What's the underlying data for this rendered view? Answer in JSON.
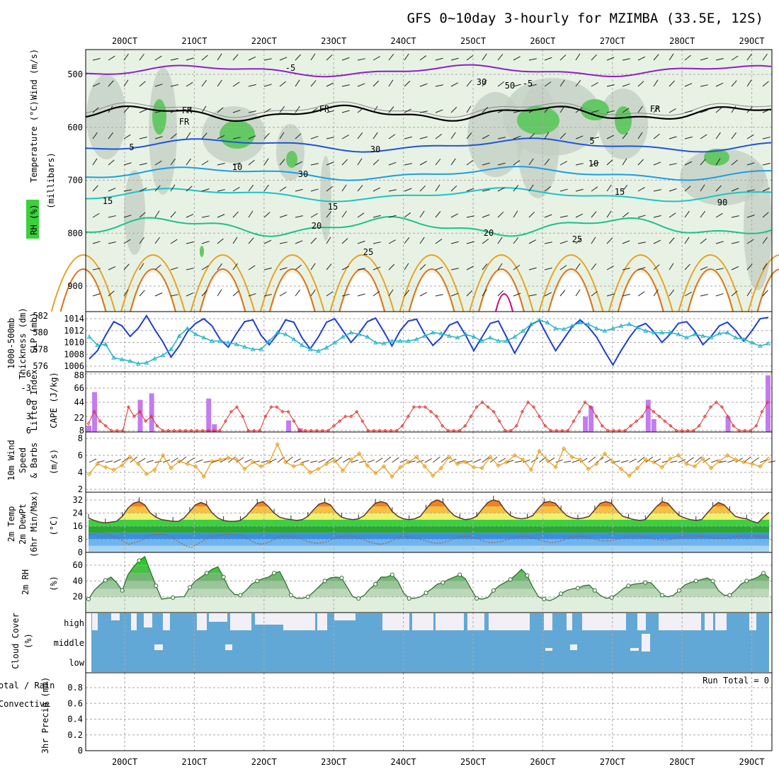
{
  "chart_data": {
    "title": "GFS 0~10day 3-hourly for MZIMBA (33.5E, 12S)",
    "x_ticks": [
      "20OCT",
      "21OCT",
      "22OCT",
      "23OCT",
      "24OCT",
      "25OCT",
      "26OCT",
      "27OCT",
      "28OCT",
      "29OCT"
    ],
    "panels": [
      {
        "name": "upper-air",
        "type": "heatmap",
        "ylabels": [
          "Wind (m/s)",
          "Temperature (°C)",
          "RH (%)",
          "(millibars)"
        ],
        "y_ticks": [
          "500",
          "600",
          "700",
          "800",
          "900"
        ],
        "contour_labels": [
          "-5",
          "-5",
          "FR",
          "FR",
          "FR",
          "FR",
          "5",
          "5",
          "10",
          "10",
          "15",
          "15",
          "15",
          "20",
          "20",
          "25",
          "25",
          "30",
          "30",
          "30",
          "50",
          "90"
        ]
      },
      {
        "name": "slp-thickness",
        "type": "line",
        "ylabels": [
          "SLP (mb)",
          "1000-500mb",
          "Thickness (dm)"
        ],
        "y_ticks_left": [
          "576",
          "578",
          "580",
          "582"
        ],
        "y_ticks_right": [
          "1006",
          "1008",
          "1010",
          "1012",
          "1014"
        ],
        "series": [
          {
            "name": "SLP",
            "color": "#1f3fd1",
            "values": [
              1007.2,
              1008.6,
              1011.2,
              1013.5,
              1012.8,
              1011.0,
              1012.4,
              1014.5,
              1012.2,
              1010.1,
              1007.5,
              1009.4,
              1011.8,
              1013.2,
              1014.0,
              1012.8,
              1010.5,
              1009.2,
              1011.5,
              1013.5,
              1013.8,
              1011.2,
              1009.6,
              1011.4,
              1013.8,
              1013.4,
              1010.8,
              1008.9,
              1010.9,
              1013.4,
              1014.0,
              1012.0,
              1010.0,
              1011.6,
              1013.5,
              1014.1,
              1011.8,
              1009.4,
              1012.0,
              1013.6,
              1013.9,
              1011.4,
              1009.5,
              1010.8,
              1012.9,
              1013.5,
              1011.2,
              1008.6,
              1010.9,
              1013.2,
              1013.6,
              1010.9,
              1008.2,
              1010.6,
              1013.0,
              1013.7,
              1011.1,
              1008.6,
              1010.6,
              1012.6,
              1013.8,
              1012.6,
              1010.9,
              1008.5,
              1006.2,
              1008.6,
              1010.8,
              1012.6,
              1013.2,
              1011.8,
              1010.0,
              1011.4,
              1013.2,
              1013.5,
              1011.9,
              1009.6,
              1011.0,
              1012.8,
              1013.4,
              1012.0,
              1010.2,
              1012.0,
              1014.0,
              1014.2
            ]
          },
          {
            "name": "Thickness",
            "color": "#23b3c9",
            "values": [
              579.5,
              578.5,
              578.6,
              577.0,
              576.8,
              576.6,
              576.3,
              576.4,
              576.9,
              577.3,
              578.0,
              579.6,
              580.5,
              579.8,
              579.4,
              579.0,
              579.0,
              578.8,
              578.6,
              578.3,
              578.0,
              578.0,
              579.0,
              580.0,
              579.8,
              579.2,
              578.5,
              578.0,
              577.8,
              578.2,
              578.8,
              579.5,
              580.0,
              579.8,
              579.5,
              578.8,
              578.7,
              579.0,
              579.0,
              579.0,
              579.2,
              579.6,
              580.0,
              579.9,
              579.6,
              579.4,
              579.8,
              579.5,
              579.0,
              579.4,
              579.0,
              579.0,
              579.5,
              580.2,
              581.0,
              581.5,
              581.2,
              580.5,
              580.4,
              580.8,
              581.2,
              581.0,
              580.5,
              580.2,
              580.5,
              580.8,
              581.0,
              580.6,
              580.2,
              580.0,
              580.0,
              580.0,
              579.8,
              579.4,
              579.8,
              579.6,
              579.4,
              579.9,
              580.0,
              579.4,
              579.2,
              578.8,
              578.4,
              578.7
            ]
          }
        ]
      },
      {
        "name": "lifted-cape",
        "type": "bar",
        "ylabels": [
          "Lifted Index",
          "CAPE (J/kg)"
        ],
        "y_ticks_left": [
          "6",
          "3",
          "0",
          "-3",
          "-6"
        ],
        "y_ticks_right": [
          "8",
          "22",
          "44",
          "66",
          "88"
        ],
        "cape_bars": [
          [
            0,
            10
          ],
          [
            1,
            62
          ],
          [
            9,
            50
          ],
          [
            11,
            60
          ],
          [
            21,
            52
          ],
          [
            22,
            12
          ],
          [
            35,
            18
          ],
          [
            37,
            6
          ],
          [
            87,
            24
          ],
          [
            88,
            40
          ],
          [
            98,
            50
          ],
          [
            99,
            20
          ],
          [
            112,
            24
          ],
          [
            119,
            88
          ]
        ],
        "lifted_index": [
          4.5,
          2,
          4,
          5,
          6,
          6,
          6,
          1,
          3,
          2,
          4,
          3,
          5,
          6,
          6,
          6,
          6,
          6,
          6,
          6,
          6,
          6,
          6,
          6,
          4,
          2,
          1,
          3,
          6,
          6,
          6,
          3,
          1,
          1,
          2,
          2,
          4,
          6,
          6,
          6,
          6,
          6,
          6,
          5,
          4,
          3,
          3,
          2,
          4,
          6,
          6,
          6,
          6,
          6,
          6,
          5,
          3,
          1,
          1,
          1,
          2,
          3,
          5,
          6,
          6,
          6,
          5,
          3,
          1,
          0,
          1,
          2,
          4,
          6,
          6,
          5,
          2,
          0,
          1,
          3,
          5,
          6,
          6,
          6,
          6,
          4,
          2,
          0,
          1,
          3,
          5,
          6,
          6,
          6,
          6,
          5,
          4,
          3,
          1,
          2,
          3,
          4,
          5,
          6,
          6,
          6,
          6,
          5,
          3,
          1,
          0,
          1,
          3,
          5,
          6,
          6,
          6,
          5,
          2,
          0
        ]
      },
      {
        "name": "wind10m",
        "type": "line",
        "ylabels": [
          "10m Wind",
          "Speed",
          "& Barbs"
        ],
        "unit": "(m/s)",
        "y_ticks": [
          "2",
          "4",
          "6",
          "8"
        ],
        "speed": [
          3.8,
          5.0,
          4.6,
          4.3,
          4.8,
          5.8,
          5.0,
          3.8,
          4.3,
          6.0,
          4.5,
          5.3,
          5.0,
          4.7,
          3.5,
          5.3,
          5.5,
          5.7,
          5.5,
          4.4,
          5.2,
          4.7,
          5.2,
          7.3,
          5.2,
          4.7,
          5.0,
          4.0,
          4.4,
          5.0,
          5.4,
          4.2,
          5.5,
          6.2,
          4.8,
          3.9,
          4.7,
          3.5,
          4.6,
          5.2,
          5.8,
          4.7,
          3.6,
          4.5,
          5.8,
          5.0,
          5.2,
          4.6,
          4.5,
          5.8,
          4.8,
          5.2,
          6.0,
          5.5,
          4.3,
          6.5,
          5.4,
          4.6,
          6.8,
          5.8,
          5.5,
          4.4,
          5.0,
          6.2,
          5.2,
          4.4,
          3.6,
          4.5,
          5.5,
          5.2,
          4.6,
          5.6,
          6.0,
          5.0,
          4.7,
          5.6,
          4.5,
          5.3,
          6.0,
          5.5,
          5.2,
          5.0,
          4.7,
          5.6
        ]
      },
      {
        "name": "temp2m",
        "type": "area",
        "ylabels": [
          "2m Temp",
          "2m DewPt",
          "(6hr Min/Max)"
        ],
        "unit": "(°C)",
        "y_ticks": [
          "0",
          "8",
          "16",
          "24",
          "32"
        ],
        "temp": [
          21,
          19.5,
          18.5,
          18,
          18.5,
          19,
          22,
          27,
          30,
          31,
          29,
          24,
          21.5,
          20,
          19.5,
          19,
          19,
          21,
          25,
          29,
          30.5,
          29,
          24,
          21,
          19.5,
          19,
          19,
          19.5,
          22,
          26,
          30,
          31,
          28,
          24,
          21.5,
          20.5,
          20,
          19.5,
          20,
          22,
          26,
          29.5,
          30.5,
          29,
          24.5,
          21.5,
          20.5,
          20,
          20.5,
          22.5,
          26.5,
          30,
          31,
          30,
          25,
          22,
          20.5,
          20,
          20.5,
          22,
          26.5,
          30.5,
          32,
          30.5,
          26,
          22.5,
          21,
          20,
          20.5,
          22,
          26.5,
          30.5,
          32,
          31,
          26,
          22.5,
          21,
          20.5,
          21,
          22.5,
          27,
          30.5,
          31,
          30,
          26,
          22.5,
          21,
          20.5,
          21,
          22,
          26,
          30,
          31,
          30,
          25.5,
          22,
          21,
          20,
          19.5,
          20,
          24,
          28,
          31,
          30,
          26,
          22.5,
          21,
          20,
          19.5,
          20,
          24,
          28,
          30.5,
          29,
          25.5,
          22,
          21,
          20.5,
          19,
          18,
          21.5,
          24.5
        ],
        "dewpt": [
          11,
          11.5,
          12,
          11.5,
          10,
          9,
          7,
          5,
          6,
          7,
          9,
          10.5,
          11,
          11,
          10,
          8,
          6,
          4,
          3,
          5,
          7,
          9,
          10,
          10.5,
          11,
          11,
          10.5,
          10,
          8,
          6,
          5,
          5.5,
          7,
          9,
          10,
          10,
          9.5,
          8.5,
          7,
          6,
          5.5,
          6,
          7,
          8.5,
          9.5,
          10,
          10,
          9,
          8,
          6.5,
          5.5,
          5,
          5.5,
          7,
          9,
          10,
          9.5,
          9,
          8,
          7,
          6,
          5.5,
          6,
          7,
          8.5,
          9.5,
          9.8,
          9.5,
          8.5,
          7,
          6,
          6,
          6.5,
          7.5,
          8.5,
          9.5,
          9.8,
          9.5,
          8.5,
          7.5,
          6.5,
          6,
          6.5,
          7.5,
          9,
          9.8,
          9.8,
          9.5,
          8.5,
          7.5,
          7,
          7,
          7.5,
          8.5,
          9.5,
          10,
          10,
          9.5,
          9,
          8,
          7.5,
          7.5,
          8,
          9,
          9.8,
          10,
          10,
          9.8,
          9.5,
          9,
          8.5,
          8.5,
          9,
          9.5,
          10,
          10,
          10,
          9.8,
          9.5,
          9.5
        ]
      },
      {
        "name": "rh2m",
        "type": "area",
        "ylabels": [
          "2m RH"
        ],
        "unit": "(%)",
        "y_ticks": [
          "20",
          "40",
          "60"
        ],
        "rh": [
          17,
          28,
          35,
          41,
          45,
          38,
          28,
          48,
          58,
          66,
          71,
          52,
          34,
          17,
          18,
          19,
          20,
          20,
          32,
          40,
          45,
          50,
          55,
          58,
          45,
          30,
          23,
          22,
          28,
          36,
          40,
          43,
          45,
          50,
          52,
          38,
          22,
          18,
          18,
          20,
          26,
          33,
          40,
          44,
          45,
          44,
          32,
          20,
          18,
          22,
          30,
          36,
          45,
          45,
          48,
          40,
          25,
          18,
          18,
          20,
          25,
          30,
          36,
          38,
          42,
          45,
          48,
          43,
          30,
          18,
          17,
          19,
          28,
          34,
          38,
          42,
          48,
          55,
          47,
          32,
          20,
          17,
          15,
          18,
          24,
          28,
          30,
          31,
          34,
          35,
          28,
          22,
          18,
          19,
          24,
          30,
          34,
          36,
          37,
          38,
          38,
          30,
          22,
          20,
          22,
          28,
          35,
          38,
          40,
          42,
          44,
          40,
          28,
          22,
          22,
          28,
          36,
          40,
          42,
          45,
          50,
          44
        ],
        "rh_color": "#3ab53a"
      },
      {
        "name": "cloud",
        "type": "bar",
        "ylabels": [
          "Cloud Cover"
        ],
        "unit": "(%)",
        "y_ticks": [
          "high",
          "middle",
          "low"
        ]
      },
      {
        "name": "precip",
        "type": "bar",
        "ylabels": [
          "3hr Precip (mm)",
          "Total / Rain",
          "Convective"
        ],
        "y_ticks": [
          "0",
          "0.2",
          "0.4",
          "0.6",
          "0.8"
        ],
        "run_total_text": "Run Total = 0",
        "values": []
      }
    ]
  },
  "colors": {
    "purple": "#8c1fc9",
    "black": "#000000",
    "blue": "#1f54d9",
    "light_blue": "#1a9ee6",
    "cyan": "#1bc4c4",
    "teal": "#19c28a",
    "orange": "#e8a020",
    "dark_orange": "#e07014",
    "magenta": "#d0007a",
    "green_fill": "#64c864",
    "grey_fill": "#c4d0c4",
    "pale_fill": "#e8f2e4",
    "cloud_blue": "#62a8d6",
    "cloud_light": "#f2f0f6"
  }
}
